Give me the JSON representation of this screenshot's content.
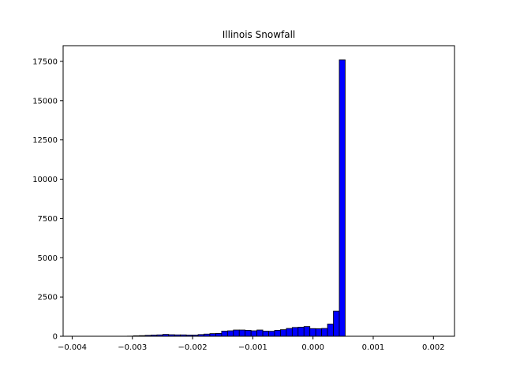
{
  "chart_data": {
    "type": "bar",
    "title": "Illinois Snowfall",
    "xlabel": "",
    "ylabel": "",
    "xlim": [
      -0.00415,
      0.00235
    ],
    "ylim": [
      0,
      18500
    ],
    "x_ticks": [
      -0.004,
      -0.003,
      -0.002,
      -0.001,
      0.0,
      0.001,
      0.002
    ],
    "x_tick_labels": [
      "−0.004",
      "−0.003",
      "−0.002",
      "−0.001",
      "0.000",
      "0.001",
      "0.002"
    ],
    "y_ticks": [
      0,
      2500,
      5000,
      7500,
      10000,
      12500,
      15000,
      17500
    ],
    "y_tick_labels": [
      "0",
      "2500",
      "5000",
      "7500",
      "10000",
      "12500",
      "15000",
      "17500"
    ],
    "grid": false,
    "bar_color": "#0000ff",
    "edge_color": "#000000",
    "bins": {
      "start": -0.00396,
      "width": 9.77e-05,
      "counts": [
        5,
        5,
        5,
        5,
        5,
        5,
        5,
        5,
        5,
        10,
        30,
        40,
        60,
        80,
        90,
        120,
        100,
        90,
        90,
        80,
        80,
        110,
        140,
        170,
        180,
        330,
        350,
        400,
        400,
        380,
        350,
        400,
        330,
        320,
        380,
        420,
        500,
        560,
        580,
        620,
        490,
        480,
        500,
        780,
        1600,
        17600,
        0,
        0,
        0,
        0,
        0,
        0,
        0,
        0,
        0,
        0,
        0,
        0,
        0,
        0,
        0,
        0,
        0,
        0,
        0,
        0
      ]
    }
  }
}
